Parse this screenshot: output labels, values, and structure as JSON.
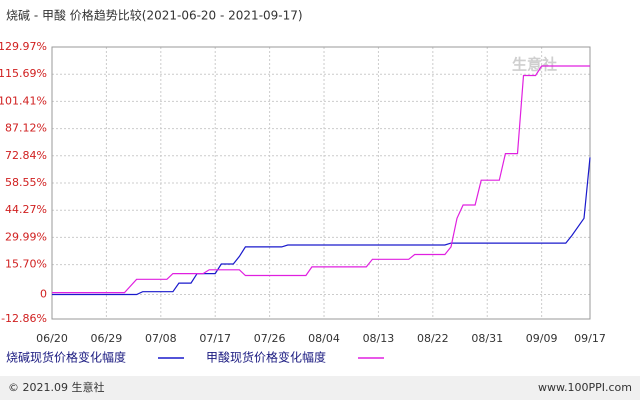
{
  "chart_data": {
    "type": "line",
    "title": "烧碱 - 甲酸 价格趋势比较(2021-06-20 - 2021-09-17)",
    "watermark": "生意社",
    "footer_left": "© 2021.09 生意社",
    "footer_right": "www.100PPI.com",
    "xlim": [
      "06/20",
      "09/17"
    ],
    "xticks": [
      "06/20",
      "06/29",
      "07/08",
      "07/17",
      "07/26",
      "08/04",
      "08/13",
      "08/22",
      "08/31",
      "09/09",
      "09/17"
    ],
    "ylim": [
      -12.86,
      129.97
    ],
    "yticks": [
      {
        "value": -12.86,
        "label": "-12.86%"
      },
      0,
      {
        "value": 15.7,
        "label": "15.70%"
      },
      {
        "value": 29.99,
        "label": "29.99%"
      },
      {
        "value": 44.27,
        "label": "44.27%"
      },
      {
        "value": 58.55,
        "label": "58.55%"
      },
      {
        "value": 72.84,
        "label": "72.84%"
      },
      {
        "value": 87.12,
        "label": "87.12%"
      },
      {
        "value": 101.41,
        "label": "101.41%"
      },
      {
        "value": 115.69,
        "label": "115.69%"
      },
      {
        "value": 129.97,
        "label": "129.97%"
      }
    ],
    "grid": true,
    "series": [
      {
        "name": "烧碱现货价格变化幅度",
        "color": "#1a1acc",
        "x": [
          "06/20",
          "07/04",
          "07/05",
          "07/10",
          "07/11",
          "07/13",
          "07/14",
          "07/17",
          "07/18",
          "07/20",
          "07/21",
          "07/22",
          "07/28",
          "07/29",
          "08/24",
          "08/25",
          "09/13",
          "09/14",
          "09/16",
          "09/17"
        ],
        "values": [
          0,
          0,
          1.5,
          1.5,
          6,
          6,
          11,
          11,
          16,
          16,
          20,
          25,
          25,
          26,
          26,
          27,
          27,
          31,
          40,
          72
        ]
      },
      {
        "name": "甲酸现货价格变化幅度",
        "color": "#e020e0",
        "x": [
          "06/20",
          "07/02",
          "07/04",
          "07/09",
          "07/10",
          "07/15",
          "07/16",
          "07/21",
          "07/22",
          "08/01",
          "08/02",
          "08/11",
          "08/12",
          "08/18",
          "08/19",
          "08/24",
          "08/25",
          "08/26",
          "08/27",
          "08/29",
          "08/30",
          "09/02",
          "09/03",
          "09/05",
          "09/06",
          "09/08",
          "09/09",
          "09/17"
        ],
        "values": [
          1,
          1,
          8,
          8,
          11,
          11,
          13,
          13,
          10,
          10,
          14.5,
          14.5,
          18.5,
          18.5,
          21,
          21,
          25,
          40,
          47,
          47,
          60,
          60,
          74,
          74,
          115,
          115,
          120,
          120
        ]
      }
    ]
  }
}
